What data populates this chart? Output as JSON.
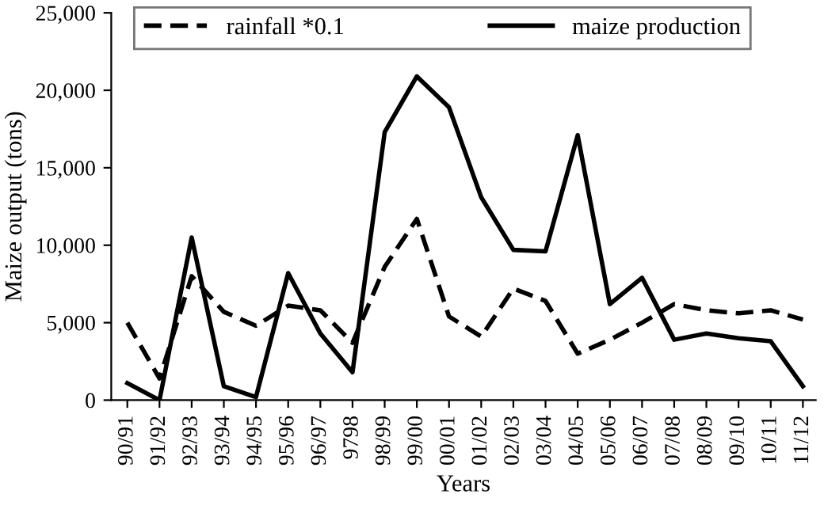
{
  "chart_data": {
    "type": "line",
    "xlabel": "Years",
    "ylabel": "Maize output (tons)",
    "categories": [
      "90/91",
      "91/92",
      "92/93",
      "93/94",
      "94/95",
      "95/96",
      "96/97",
      "9798",
      "98/99",
      "99/00",
      "00/01",
      "01/02",
      "02/03",
      "03/04",
      "04/05",
      "05/06",
      "06/07",
      "07/08",
      "08/09",
      "09/10",
      "10/11",
      "11/12"
    ],
    "series": [
      {
        "name": "rainfall *0.1",
        "color": "#000000",
        "line_style": "dashed",
        "values": [
          5000,
          1400,
          8000,
          5700,
          4800,
          6100,
          5800,
          3700,
          8600,
          11700,
          5400,
          4100,
          7200,
          6400,
          3000,
          3900,
          5000,
          6200,
          5800,
          5600,
          5800,
          5200
        ]
      },
      {
        "name": "maize production",
        "color": "#000000",
        "line_style": "solid",
        "values": [
          1100,
          0,
          10500,
          900,
          200,
          8200,
          4300,
          1800,
          17300,
          20900,
          18900,
          13100,
          9700,
          9600,
          17100,
          6200,
          7900,
          3900,
          4300,
          4000,
          3800,
          900
        ]
      }
    ],
    "ylim": [
      0,
      25000
    ],
    "yticks": [
      {
        "value": 0,
        "label": "0"
      },
      {
        "value": 5000,
        "label": "5,000"
      },
      {
        "value": 10000,
        "label": "10,000"
      },
      {
        "value": 15000,
        "label": "15,000"
      },
      {
        "value": 20000,
        "label": "20,000"
      },
      {
        "value": 25000,
        "label": "25,000"
      }
    ],
    "grid": false,
    "legend": "top",
    "marker": "none"
  }
}
